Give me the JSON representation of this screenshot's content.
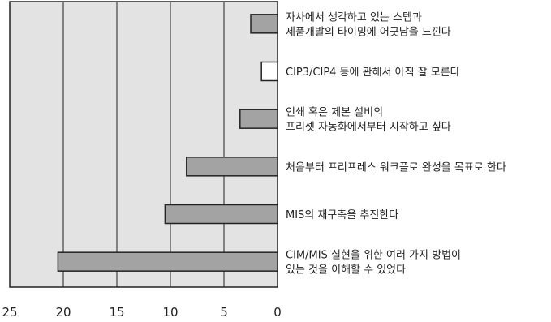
{
  "chart_data": {
    "type": "bar",
    "orientation": "horizontal",
    "x_axis_direction": "reversed",
    "xlim": [
      0,
      25
    ],
    "x_ticks": [
      25,
      20,
      15,
      10,
      5,
      0
    ],
    "grid": true,
    "legend": "none",
    "title": "",
    "xlabel": "",
    "ylabel": "",
    "categories": [
      [
        "자사에서 생각하고 있는 스텝과",
        "제품개발의 타이밍에 어긋남을 느낀다"
      ],
      [
        "CIP3/CIP4 등에 관해서 아직 잘 모른다"
      ],
      [
        "인쇄 혹은 제본 설비의",
        "프리셋 자동화에서부터 시작하고 싶다"
      ],
      [
        "처음부터 프리프레스 워크플로 완성을 목표로 한다"
      ],
      [
        "MIS의 재구축을 추진한다"
      ],
      [
        "CIM/MIS 실현을 위한 여러 가지 방법이",
        "있는 것을 이해할 수 있었다"
      ]
    ],
    "values": [
      2.5,
      1.5,
      3.5,
      8.5,
      10.5,
      20.5
    ],
    "bar_colors": [
      "#a3a3a3",
      "#ffffff",
      "#a3a3a3",
      "#a3a3a3",
      "#a3a3a3",
      "#a3a3a3"
    ],
    "plot_background": "#e3e3e3"
  }
}
